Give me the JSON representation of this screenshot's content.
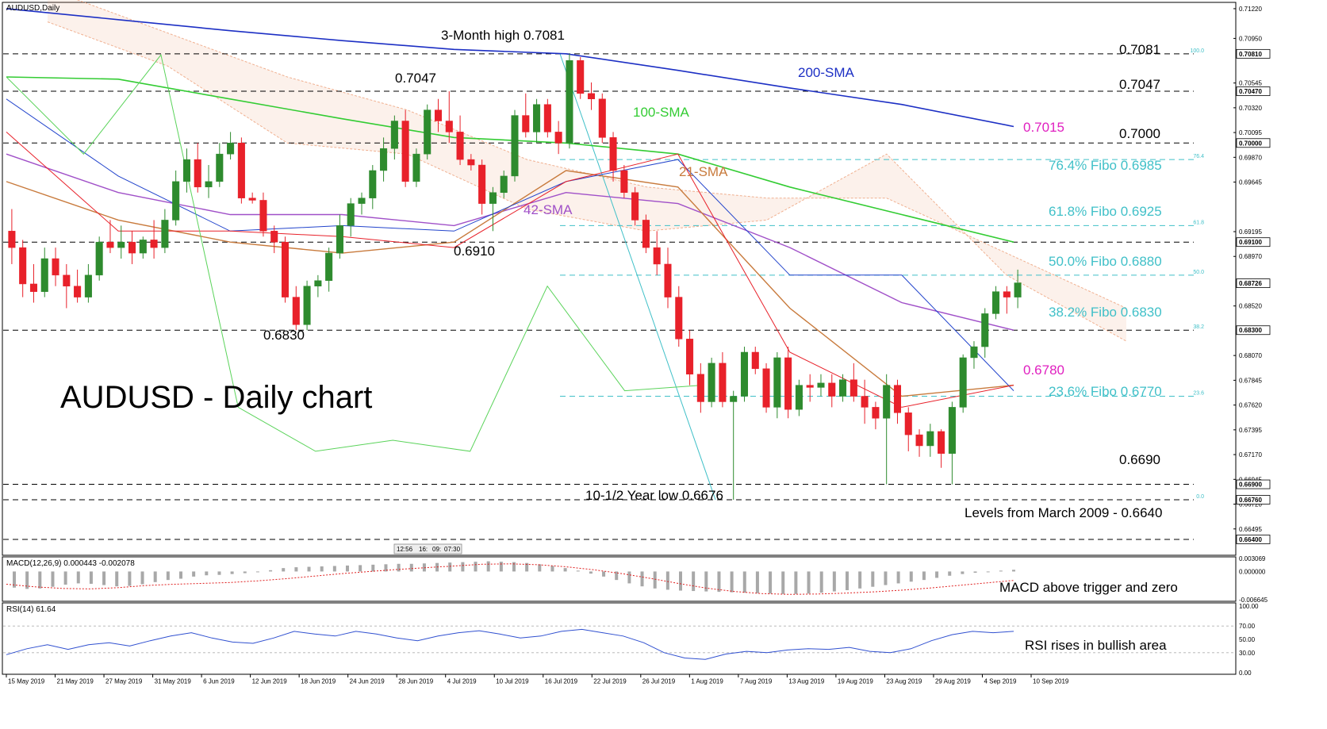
{
  "colors": {
    "bull": "#2e8b2e",
    "bear": "#e8212a",
    "sma200": "#1c2fc4",
    "sma100": "#33cc33",
    "sma42": "#a050c8",
    "sma21": "#c87a3c",
    "tenkan": "#e8212a",
    "kijun": "#2244cc",
    "chikou": "#5ad35a",
    "cloud": "#f0b090",
    "fib": "#40c0c8",
    "level": "#000000",
    "macd_hist": "#a8a8a8",
    "macd_signal": "#e02020",
    "rsi": "#3050d0"
  },
  "main": {
    "symbol": "AUDUSD,Daily",
    "watermark": "AUDUSD - Daily chart",
    "time_box": [
      "12:56",
      "16:",
      "09:",
      "07:30"
    ]
  },
  "price_axis": {
    "ticks": [
      "0.71220",
      "0.70950",
      "0.70545",
      "0.70320",
      "0.70095",
      "0.69870",
      "0.69645",
      "0.69195",
      "0.68970",
      "0.68520",
      "0.68070",
      "0.67845",
      "0.67620",
      "0.67395",
      "0.67170",
      "0.66945",
      "0.66720",
      "0.66495"
    ],
    "level_boxes": [
      "0.70810",
      "0.70470",
      "0.70000",
      "0.69100",
      "0.68726",
      "0.68300",
      "0.66900",
      "0.66760",
      "0.66400"
    ]
  },
  "chart_data": [
    {
      "type": "candlestick",
      "title": "AUDUSD - Daily chart",
      "x_dates": [
        "15 May 2019",
        "21 May 2019",
        "27 May 2019",
        "31 May 2019",
        "6 Jun 2019",
        "12 Jun 2019",
        "18 Jun 2019",
        "24 Jun 2019",
        "28 Jun 2019",
        "4 Jul 2019",
        "10 Jul 2019",
        "16 Jul 2019",
        "22 Jul 2019",
        "26 Jul 2019",
        "1 Aug 2019",
        "7 Aug 2019",
        "13 Aug 2019",
        "19 Aug 2019",
        "23 Aug 2019",
        "29 Aug 2019",
        "4 Sep 2019",
        "10 Sep 2019"
      ],
      "ylim": [
        0.6627,
        0.7127
      ],
      "series_labels": [
        "200-SMA",
        "100-SMA",
        "21-SMA",
        "42-SMA"
      ],
      "value_labels": [
        {
          "label": "0.7015",
          "color": "#e020c0"
        },
        {
          "label": "0.6780",
          "color": "#e020c0"
        }
      ],
      "levels": [
        {
          "value": 0.7081,
          "label": "0.7081",
          "kind": "line",
          "fib_tag": "100.0"
        },
        {
          "value": 0.7047,
          "label": "0.7047",
          "kind": "line"
        },
        {
          "value": 0.7,
          "label": "0.7000",
          "kind": "line"
        },
        {
          "value": 0.6985,
          "label": "76.4% Fibo 0.6985",
          "kind": "fib",
          "fib_tag": "76.4"
        },
        {
          "value": 0.6925,
          "label": "61.8% Fibo 0.6925",
          "kind": "fib",
          "fib_tag": "61.8"
        },
        {
          "value": 0.691,
          "label": "",
          "kind": "line"
        },
        {
          "value": 0.688,
          "label": "50.0% Fibo 0.6880",
          "kind": "fib",
          "fib_tag": "50.0"
        },
        {
          "value": 0.683,
          "label": "38.2% Fibo 0.6830",
          "kind": "line",
          "fib_tag": "38.2"
        },
        {
          "value": 0.677,
          "label": "23.6% Fibo 0.6770",
          "kind": "fib",
          "fib_tag": "23.6"
        },
        {
          "value": 0.669,
          "label": "0.6690",
          "kind": "line"
        },
        {
          "value": 0.6676,
          "label": "",
          "kind": "line",
          "fib_tag": "0.0"
        },
        {
          "value": 0.664,
          "label": "Levels from March 2009 - 0.6640",
          "kind": "line"
        }
      ],
      "annotations": [
        {
          "text": "3-Month high 0.7081",
          "value": 0.7081
        },
        {
          "text": "0.7047",
          "value": 0.7047
        },
        {
          "text": "0.6910",
          "value": 0.691
        },
        {
          "text": "0.6830",
          "value": 0.683
        },
        {
          "text": "10-1/2 Year low 0.6676",
          "value": 0.6676
        }
      ],
      "candles": [
        [
          0.692,
          0.694,
          0.689,
          0.6905
        ],
        [
          0.6905,
          0.6912,
          0.686,
          0.6872
        ],
        [
          0.6872,
          0.689,
          0.6855,
          0.6865
        ],
        [
          0.6865,
          0.6905,
          0.686,
          0.6895
        ],
        [
          0.6895,
          0.6905,
          0.687,
          0.688
        ],
        [
          0.688,
          0.689,
          0.685,
          0.687
        ],
        [
          0.687,
          0.6885,
          0.6855,
          0.686
        ],
        [
          0.686,
          0.689,
          0.6855,
          0.688
        ],
        [
          0.688,
          0.6915,
          0.6875,
          0.691
        ],
        [
          0.691,
          0.693,
          0.69,
          0.6905
        ],
        [
          0.6905,
          0.6925,
          0.6895,
          0.691
        ],
        [
          0.691,
          0.692,
          0.689,
          0.69
        ],
        [
          0.69,
          0.6915,
          0.6895,
          0.6912
        ],
        [
          0.6912,
          0.693,
          0.6895,
          0.6905
        ],
        [
          0.6905,
          0.694,
          0.69,
          0.693
        ],
        [
          0.693,
          0.6975,
          0.6925,
          0.6965
        ],
        [
          0.6965,
          0.6995,
          0.6955,
          0.6985
        ],
        [
          0.6985,
          0.7,
          0.6955,
          0.696
        ],
        [
          0.696,
          0.698,
          0.695,
          0.6965
        ],
        [
          0.6965,
          0.7,
          0.696,
          0.699
        ],
        [
          0.699,
          0.701,
          0.6985,
          0.7
        ],
        [
          0.7,
          0.7005,
          0.6945,
          0.695
        ],
        [
          0.695,
          0.6955,
          0.6945,
          0.6948
        ],
        [
          0.6948,
          0.6955,
          0.6915,
          0.692
        ],
        [
          0.692,
          0.6925,
          0.69,
          0.691
        ],
        [
          0.691,
          0.6915,
          0.6855,
          0.686
        ],
        [
          0.686,
          0.687,
          0.683,
          0.6835
        ],
        [
          0.6835,
          0.6875,
          0.683,
          0.687
        ],
        [
          0.687,
          0.688,
          0.686,
          0.6875
        ],
        [
          0.6875,
          0.6905,
          0.6865,
          0.69
        ],
        [
          0.69,
          0.6935,
          0.6895,
          0.6925
        ],
        [
          0.6925,
          0.695,
          0.6915,
          0.6945
        ],
        [
          0.6945,
          0.6955,
          0.6935,
          0.695
        ],
        [
          0.695,
          0.698,
          0.694,
          0.6975
        ],
        [
          0.6975,
          0.7005,
          0.6965,
          0.6995
        ],
        [
          0.6995,
          0.7025,
          0.6985,
          0.702
        ],
        [
          0.702,
          0.703,
          0.696,
          0.6965
        ],
        [
          0.6965,
          0.6995,
          0.696,
          0.699
        ],
        [
          0.699,
          0.7035,
          0.6985,
          0.703
        ],
        [
          0.703,
          0.704,
          0.701,
          0.702
        ],
        [
          0.702,
          0.7047,
          0.7,
          0.701
        ],
        [
          0.701,
          0.7025,
          0.698,
          0.6985
        ],
        [
          0.6985,
          0.699,
          0.6975,
          0.698
        ],
        [
          0.698,
          0.6985,
          0.6935,
          0.6945
        ],
        [
          0.6945,
          0.696,
          0.692,
          0.6955
        ],
        [
          0.6955,
          0.6975,
          0.695,
          0.697
        ],
        [
          0.697,
          0.703,
          0.6965,
          0.7025
        ],
        [
          0.7025,
          0.7045,
          0.7005,
          0.701
        ],
        [
          0.701,
          0.704,
          0.7,
          0.7035
        ],
        [
          0.7035,
          0.704,
          0.7005,
          0.701
        ],
        [
          0.701,
          0.702,
          0.699,
          0.7
        ],
        [
          0.7,
          0.7081,
          0.6995,
          0.7075
        ],
        [
          0.7075,
          0.7078,
          0.704,
          0.7045
        ],
        [
          0.7045,
          0.7055,
          0.703,
          0.704
        ],
        [
          0.704,
          0.7045,
          0.7,
          0.7005
        ],
        [
          0.7005,
          0.701,
          0.6965,
          0.6975
        ],
        [
          0.6975,
          0.698,
          0.695,
          0.6955
        ],
        [
          0.6955,
          0.696,
          0.6925,
          0.693
        ],
        [
          0.693,
          0.6935,
          0.69,
          0.6905
        ],
        [
          0.6905,
          0.692,
          0.688,
          0.689
        ],
        [
          0.689,
          0.6905,
          0.685,
          0.686
        ],
        [
          0.686,
          0.687,
          0.6815,
          0.6822
        ],
        [
          0.6822,
          0.683,
          0.678,
          0.679
        ],
        [
          0.679,
          0.68,
          0.6755,
          0.6765
        ],
        [
          0.6765,
          0.6805,
          0.676,
          0.68
        ],
        [
          0.68,
          0.681,
          0.676,
          0.6765
        ],
        [
          0.6765,
          0.6775,
          0.6676,
          0.677
        ],
        [
          0.677,
          0.6815,
          0.6765,
          0.681
        ],
        [
          0.681,
          0.6815,
          0.679,
          0.6795
        ],
        [
          0.6795,
          0.68,
          0.6755,
          0.676
        ],
        [
          0.676,
          0.681,
          0.675,
          0.6805
        ],
        [
          0.6805,
          0.6815,
          0.675,
          0.6758
        ],
        [
          0.6758,
          0.6785,
          0.6752,
          0.678
        ],
        [
          0.678,
          0.679,
          0.6765,
          0.6778
        ],
        [
          0.6778,
          0.679,
          0.677,
          0.6782
        ],
        [
          0.6782,
          0.679,
          0.676,
          0.677
        ],
        [
          0.677,
          0.679,
          0.6765,
          0.6785
        ],
        [
          0.6785,
          0.68,
          0.6765,
          0.677
        ],
        [
          0.677,
          0.6785,
          0.6745,
          0.676
        ],
        [
          0.676,
          0.6765,
          0.674,
          0.675
        ],
        [
          0.675,
          0.679,
          0.669,
          0.678
        ],
        [
          0.678,
          0.6785,
          0.6745,
          0.6755
        ],
        [
          0.6755,
          0.676,
          0.672,
          0.6735
        ],
        [
          0.6735,
          0.674,
          0.6715,
          0.6725
        ],
        [
          0.6725,
          0.6745,
          0.6715,
          0.6738
        ],
        [
          0.6738,
          0.674,
          0.6705,
          0.6718
        ],
        [
          0.6718,
          0.6765,
          0.669,
          0.676
        ],
        [
          0.676,
          0.6808,
          0.6755,
          0.6805
        ],
        [
          0.6805,
          0.682,
          0.6795,
          0.6815
        ],
        [
          0.6815,
          0.685,
          0.6805,
          0.6845
        ],
        [
          0.6845,
          0.687,
          0.684,
          0.6865
        ],
        [
          0.6865,
          0.687,
          0.6845,
          0.686
        ],
        [
          0.686,
          0.6885,
          0.685,
          0.6873
        ]
      ],
      "sma200": [
        0.7122,
        0.7112,
        0.7102,
        0.7093,
        0.7085,
        0.7081,
        0.7066,
        0.705,
        0.7035,
        0.7015
      ],
      "sma100": [
        0.706,
        0.7058,
        0.704,
        0.7022,
        0.7005,
        0.7,
        0.699,
        0.696,
        0.6935,
        0.691
      ],
      "sma42": [
        0.699,
        0.6955,
        0.6935,
        0.6935,
        0.6925,
        0.6955,
        0.6945,
        0.6905,
        0.6855,
        0.683
      ],
      "sma21": [
        0.6965,
        0.693,
        0.691,
        0.69,
        0.691,
        0.6975,
        0.696,
        0.685,
        0.677,
        0.678
      ],
      "tenkan": [
        0.701,
        0.692,
        0.692,
        0.6915,
        0.6905,
        0.6965,
        0.699,
        0.681,
        0.676,
        0.678
      ],
      "kijun": [
        0.704,
        0.697,
        0.692,
        0.6925,
        0.692,
        0.6965,
        0.6985,
        0.688,
        0.688,
        0.6775
      ],
      "chikou": [
        0.706,
        0.699,
        0.708,
        0.676,
        0.672,
        0.673,
        0.672,
        0.687,
        0.6775,
        0.678
      ],
      "cloud_a": [
        0.714,
        0.71,
        0.706,
        0.703,
        0.6985,
        0.696,
        0.695,
        0.695,
        0.69,
        0.685
      ],
      "cloud_b": [
        0.711,
        0.707,
        0.7,
        0.699,
        0.694,
        0.692,
        0.693,
        0.699,
        0.688,
        0.682
      ]
    },
    {
      "type": "macd",
      "title": "MACD(12,26,9) 0.000443 -0.002078",
      "ylim": [
        -0.006645,
        0.003069
      ],
      "ticks": [
        "0.003069",
        "0.000000",
        "-0.006645"
      ],
      "annotation": "MACD above trigger and zero",
      "histogram": [
        -0.0038,
        -0.0041,
        -0.004,
        -0.0036,
        -0.0031,
        -0.0028,
        -0.0029,
        -0.0032,
        -0.0035,
        -0.0034,
        -0.003,
        -0.0025,
        -0.002,
        -0.0017,
        -0.0012,
        -0.0009,
        -0.0008,
        -0.0006,
        -0.0004,
        -0.0001,
        0.0003,
        0.0008,
        0.001,
        0.0011,
        0.0012,
        0.0013,
        0.0014,
        0.0015,
        0.0016,
        0.0017,
        0.0018,
        0.0018,
        0.0019,
        0.002,
        0.0021,
        0.0022,
        0.0023,
        0.0024,
        0.0023,
        0.0022,
        0.002,
        0.0017,
        0.0013,
        0.0008,
        0.0002,
        -0.0005,
        -0.0012,
        -0.002,
        -0.0028,
        -0.0035,
        -0.004,
        -0.0043,
        -0.0045,
        -0.0046,
        -0.0047,
        -0.0048,
        -0.0049,
        -0.005,
        -0.0051,
        -0.0052,
        -0.0053,
        -0.0053,
        -0.0052,
        -0.005,
        -0.0047,
        -0.0044,
        -0.004,
        -0.0036,
        -0.0032,
        -0.0028,
        -0.0024,
        -0.002,
        -0.0015,
        -0.001,
        -0.0006,
        -0.0003,
        -0.0001,
        0.0002,
        0.0004
      ],
      "signal": [
        -0.003,
        -0.0036,
        -0.004,
        -0.0041,
        -0.0038,
        -0.0033,
        -0.003,
        -0.0028,
        -0.0026,
        -0.0022,
        -0.0017,
        -0.0011,
        -0.0005,
        0.0,
        0.0005,
        0.0009,
        0.0013,
        0.0017,
        0.0018,
        0.0016,
        0.0011,
        0.0004,
        -0.0005,
        -0.0016,
        -0.0028,
        -0.0039,
        -0.0047,
        -0.0052,
        -0.0054,
        -0.0053,
        -0.0051,
        -0.0048,
        -0.0044,
        -0.0039,
        -0.0033,
        -0.0027,
        -0.0021
      ]
    },
    {
      "type": "line",
      "title": "RSI(14) 61.64",
      "ylim": [
        0,
        100
      ],
      "ticks": [
        "100.00",
        "70.00",
        "50.00",
        "30.00",
        "0.00"
      ],
      "annotation": "RSI rises in bullish area",
      "values": [
        27,
        36,
        42,
        35,
        42,
        45,
        40,
        48,
        55,
        60,
        52,
        46,
        44,
        52,
        62,
        58,
        55,
        62,
        58,
        52,
        48,
        55,
        60,
        63,
        58,
        52,
        55,
        62,
        65,
        60,
        55,
        45,
        30,
        22,
        20,
        28,
        32,
        30,
        34,
        36,
        35,
        38,
        32,
        30,
        36,
        48,
        57,
        62,
        60,
        62
      ]
    }
  ]
}
